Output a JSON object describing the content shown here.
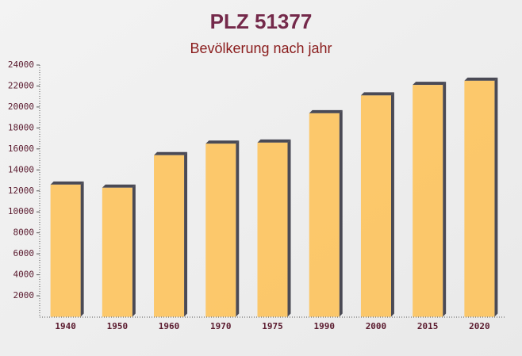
{
  "chart_data": {
    "type": "bar",
    "title": "PLZ 51377",
    "subtitle": "Bevölkerung nach jahr",
    "categories": [
      "1940",
      "1950",
      "1960",
      "1970",
      "1975",
      "1990",
      "2000",
      "2015",
      "2020"
    ],
    "values": [
      12600,
      12300,
      15400,
      16500,
      16600,
      19400,
      21100,
      22100,
      22500
    ],
    "color": "#fdc35c",
    "ylim": [
      0,
      24000
    ],
    "yticks": [
      2000,
      4000,
      6000,
      8000,
      10000,
      12000,
      14000,
      16000,
      18000,
      20000,
      22000,
      24000
    ],
    "grid": false
  }
}
